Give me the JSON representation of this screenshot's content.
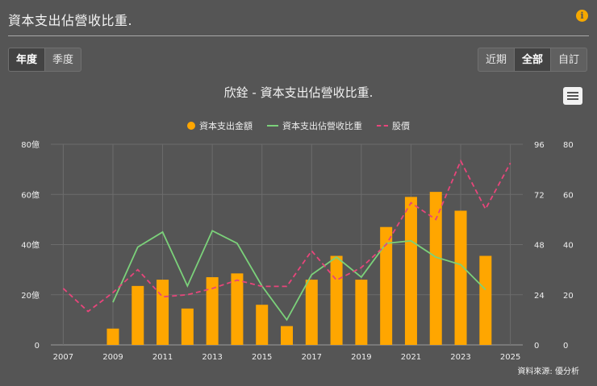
{
  "header": {
    "title": "資本支出佔營收比重."
  },
  "period_buttons": [
    {
      "label": "年度",
      "active": true
    },
    {
      "label": "季度",
      "active": false
    }
  ],
  "range_buttons": [
    {
      "label": "近期",
      "active": false
    },
    {
      "label": "全部",
      "active": true
    },
    {
      "label": "自訂",
      "active": false
    }
  ],
  "source": "資料來源: 優分析",
  "chart_data": {
    "type": "bar",
    "title": "欣銓 - 資本支出佔營收比重.",
    "legend_position": "top-center",
    "grid": true,
    "x_ticks": [
      "2007",
      "2009",
      "2011",
      "2013",
      "2015",
      "2017",
      "2019",
      "2021",
      "2023",
      "2025"
    ],
    "y_left": {
      "ticks": [
        "0",
        "20億",
        "40億",
        "60億",
        "80億"
      ],
      "range": [
        0,
        80
      ]
    },
    "y_right_inner": {
      "ticks": [
        "0",
        "24",
        "48",
        "72",
        "96"
      ],
      "range": [
        0,
        96
      ]
    },
    "y_right_outer": {
      "ticks": [
        "0",
        "20",
        "40",
        "60",
        "80"
      ],
      "range": [
        0,
        80
      ]
    },
    "series": [
      {
        "name": "資本支出金額",
        "type": "bar",
        "axis": "left",
        "color": "#ffa600",
        "x": [
          2009,
          2010,
          2011,
          2012,
          2013,
          2014,
          2015,
          2016,
          2017,
          2018,
          2019,
          2020,
          2021,
          2022,
          2023,
          2024
        ],
        "values": [
          6.5,
          23.5,
          26,
          14.5,
          27,
          28.5,
          16,
          7.5,
          26,
          35.5,
          26,
          47,
          59,
          61,
          53.5,
          35.5
        ]
      },
      {
        "name": "資本支出佔營收比重",
        "type": "line",
        "axis": "right_outer",
        "color": "#7bd17a",
        "x": [
          2009,
          2010,
          2011,
          2012,
          2013,
          2014,
          2015,
          2016,
          2017,
          2018,
          2019,
          2020,
          2021,
          2022,
          2023,
          2024
        ],
        "values": [
          17,
          39,
          45,
          23.5,
          45.5,
          40.5,
          23.5,
          10,
          28,
          35,
          27,
          40.5,
          41.5,
          35,
          32,
          22
        ]
      },
      {
        "name": "股價",
        "type": "line",
        "dash": true,
        "axis": "right_inner",
        "color": "#e8457b",
        "x": [
          2007,
          2008,
          2009,
          2010,
          2011,
          2012,
          2013,
          2014,
          2015,
          2016,
          2017,
          2018,
          2019,
          2020,
          2021,
          2022,
          2023,
          2024,
          2025
        ],
        "values": [
          27,
          16,
          25,
          36,
          23,
          24,
          27,
          31,
          28,
          28,
          45,
          31,
          37,
          48,
          68,
          60,
          88,
          65,
          87
        ]
      }
    ]
  }
}
